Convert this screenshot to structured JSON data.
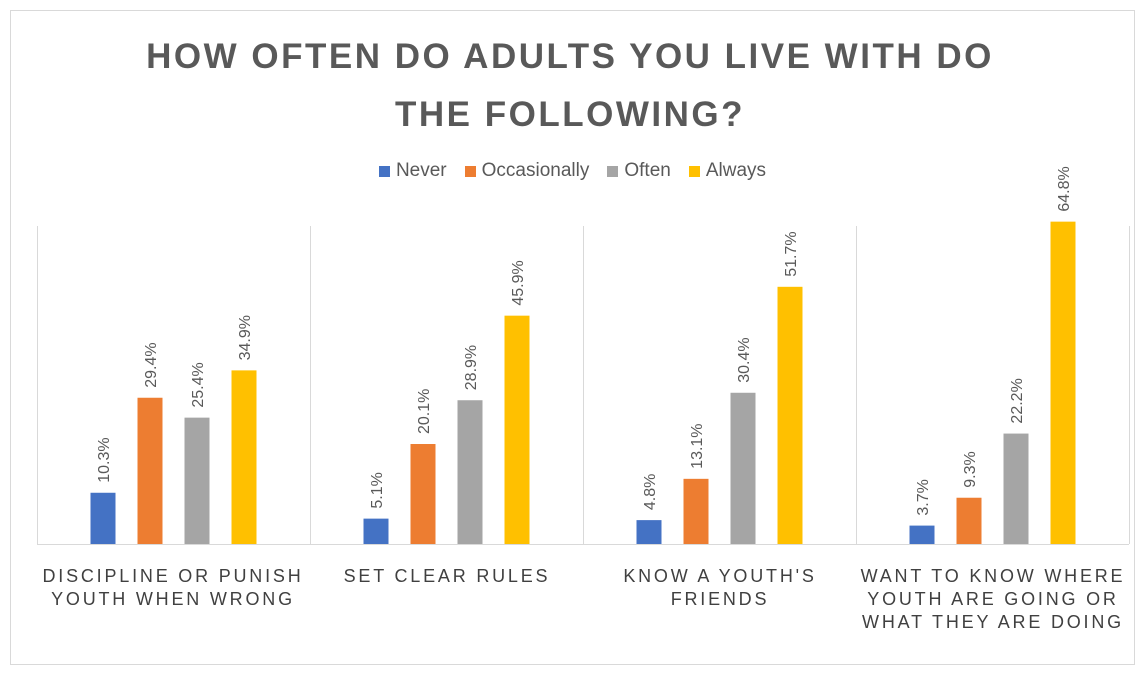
{
  "chart_data": {
    "type": "bar",
    "title": "HOW OFTEN DO ADULTS YOU LIVE WITH DO THE FOLLOWING?",
    "categories": [
      "DISCIPLINE OR PUNISH YOUTH WHEN WRONG",
      "SET CLEAR RULES",
      "KNOW A YOUTH'S FRIENDS",
      "WANT TO KNOW WHERE YOUTH ARE GOING OR WHAT THEY ARE DOING"
    ],
    "series": [
      {
        "name": "Never",
        "color": "#4472c4",
        "values": [
          10.3,
          5.1,
          4.8,
          3.7
        ],
        "labels": [
          "10.3%",
          "5.1%",
          "4.8%",
          "3.7%"
        ]
      },
      {
        "name": "Occasionally",
        "color": "#ed7d31",
        "values": [
          29.4,
          20.1,
          13.1,
          9.3
        ],
        "labels": [
          "29.4%",
          "20.1%",
          "13.1%",
          "9.3%"
        ]
      },
      {
        "name": "Often",
        "color": "#a5a5a5",
        "values": [
          25.4,
          28.9,
          30.4,
          22.2
        ],
        "labels": [
          "25.4%",
          "28.9%",
          "30.4%",
          "22.2%"
        ]
      },
      {
        "name": "Always",
        "color": "#ffc000",
        "values": [
          34.9,
          45.9,
          51.7,
          64.8
        ],
        "labels": [
          "34.9%",
          "45.9%",
          "51.7%",
          "64.8%"
        ]
      }
    ],
    "ylim": [
      0,
      65
    ],
    "xlabel": "",
    "ylabel": "",
    "grid": false,
    "legend": "top",
    "separators": true
  }
}
